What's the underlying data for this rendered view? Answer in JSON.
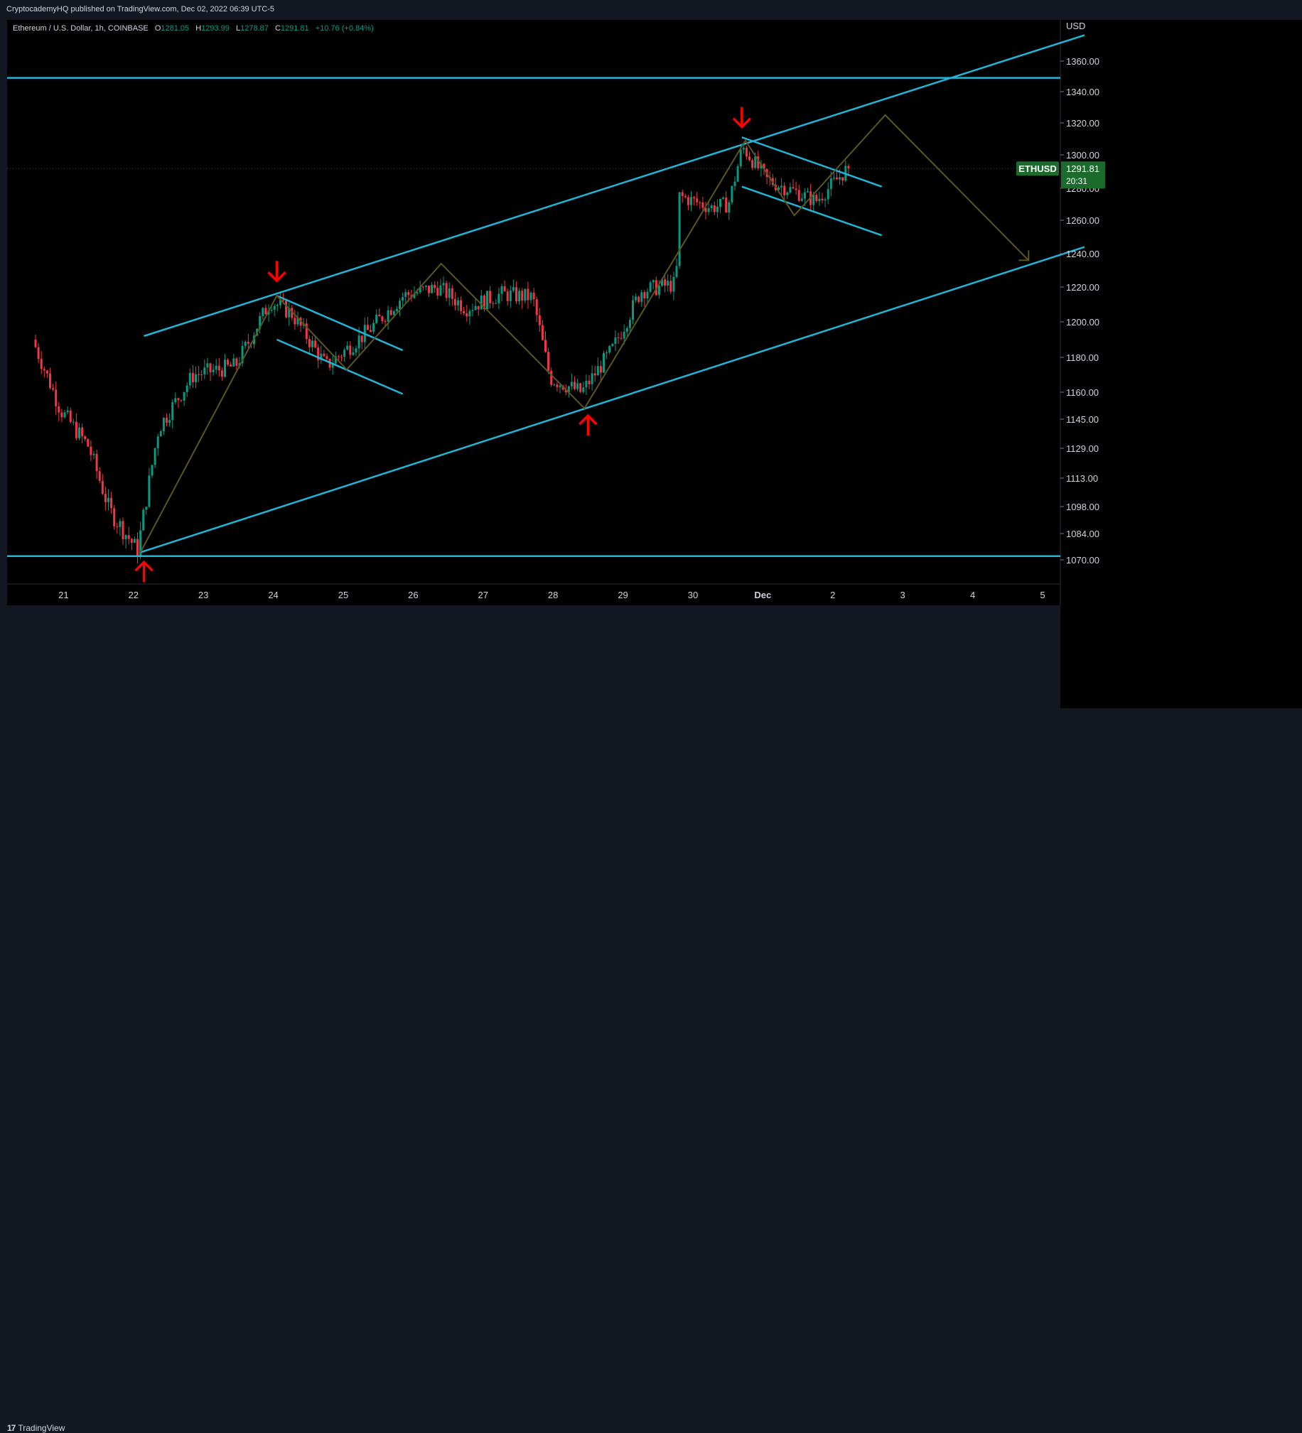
{
  "header": {
    "publisher_line": "CryptocademyHQ published on TradingView.com, Dec 02, 2022 06:39 UTC-5"
  },
  "legend": {
    "symbol": "Ethereum / U.S. Dollar, 1h, COINBASE",
    "o_label": "O",
    "o_value": "1281.05",
    "h_label": "H",
    "h_value": "1293.99",
    "l_label": "L",
    "l_value": "1278.87",
    "c_label": "C",
    "c_value": "1291.81",
    "change": "+10.76 (+0.84%)"
  },
  "footer": {
    "brand_mark": "17",
    "brand": "TradingView"
  },
  "colors": {
    "background": "#000000",
    "frame": "#131722",
    "up": "#089981",
    "down": "#f23645",
    "trendline": "#22b5d6",
    "path": "#5a5620",
    "arrow": "#ff0000",
    "price_tag": "#1b6b2d"
  },
  "chart_data": {
    "type": "candlestick",
    "symbol": "ETHUSD",
    "currency": "USD",
    "timeframe": "1h",
    "price_axis_ticks": [
      1360.0,
      1340.0,
      1320.0,
      1300.0,
      1280.0,
      1260.0,
      1240.0,
      1220.0,
      1200.0,
      1180.0,
      1160.0,
      1145.0,
      1129.0,
      1113.0,
      1098.0,
      1084.0,
      1070.0
    ],
    "time_axis_ticks": [
      "21",
      "22",
      "23",
      "24",
      "25",
      "26",
      "27",
      "28",
      "29",
      "30",
      "Dec",
      "2",
      "3",
      "4",
      "5"
    ],
    "last_price_label": "ETHUSD",
    "last_price": "1291.81",
    "countdown": "20:31",
    "key_points": [
      {
        "day": 20.6,
        "price": 1190
      },
      {
        "day": 21.0,
        "price": 1150
      },
      {
        "day": 21.4,
        "price": 1130
      },
      {
        "day": 21.7,
        "price": 1096
      },
      {
        "day": 22.1,
        "price": 1075
      },
      {
        "day": 22.4,
        "price": 1140
      },
      {
        "day": 22.9,
        "price": 1170
      },
      {
        "day": 23.5,
        "price": 1175
      },
      {
        "day": 24.0,
        "price": 1212
      },
      {
        "day": 24.3,
        "price": 1205
      },
      {
        "day": 24.8,
        "price": 1175
      },
      {
        "day": 25.4,
        "price": 1195
      },
      {
        "day": 25.9,
        "price": 1215
      },
      {
        "day": 26.4,
        "price": 1220
      },
      {
        "day": 26.8,
        "price": 1208
      },
      {
        "day": 27.3,
        "price": 1216
      },
      {
        "day": 27.75,
        "price": 1214
      },
      {
        "day": 28.0,
        "price": 1168
      },
      {
        "day": 28.45,
        "price": 1160
      },
      {
        "day": 28.9,
        "price": 1185
      },
      {
        "day": 29.3,
        "price": 1218
      },
      {
        "day": 29.8,
        "price": 1222
      },
      {
        "day": 29.85,
        "price": 1275
      },
      {
        "day": 30.3,
        "price": 1268
      },
      {
        "day": 30.55,
        "price": 1270
      },
      {
        "day": 30.75,
        "price": 1305
      },
      {
        "day": 31.1,
        "price": 1285
      },
      {
        "day": 31.5,
        "price": 1278
      },
      {
        "day": 31.8,
        "price": 1272
      },
      {
        "day": 32.25,
        "price": 1291.81
      }
    ],
    "horizontal_levels": [
      1349,
      1072
    ],
    "channel_upper": [
      {
        "day": 22.15,
        "price": 1192
      },
      {
        "day": 35.6,
        "price": 1377
      }
    ],
    "channel_lower": [
      {
        "day": 22.1,
        "price": 1074
      },
      {
        "day": 35.6,
        "price": 1244
      }
    ],
    "flag_1": [
      {
        "from": {
          "day": 24.05,
          "price": 1215
        },
        "to": {
          "day": 25.85,
          "price": 1184
        }
      },
      {
        "from": {
          "day": 24.05,
          "price": 1190
        },
        "to": {
          "day": 25.85,
          "price": 1159
        }
      }
    ],
    "flag_2": [
      {
        "from": {
          "day": 30.7,
          "price": 1311
        },
        "to": {
          "day": 32.7,
          "price": 1281
        }
      },
      {
        "from": {
          "day": 30.7,
          "price": 1281
        },
        "to": {
          "day": 32.7,
          "price": 1251
        }
      }
    ],
    "projection_path": [
      {
        "day": 22.1,
        "price": 1074
      },
      {
        "day": 24.05,
        "price": 1215
      },
      {
        "day": 25.05,
        "price": 1173
      },
      {
        "day": 26.4,
        "price": 1234
      },
      {
        "day": 28.45,
        "price": 1151
      },
      {
        "day": 30.75,
        "price": 1309
      },
      {
        "day": 31.45,
        "price": 1263
      },
      {
        "day": 32.75,
        "price": 1325
      },
      {
        "day": 34.8,
        "price": 1236
      }
    ],
    "signal_arrows": [
      {
        "type": "up",
        "day": 22.15,
        "price": 1065
      },
      {
        "type": "down",
        "day": 24.05,
        "price": 1228
      },
      {
        "type": "up",
        "day": 28.5,
        "price": 1143
      },
      {
        "type": "down",
        "day": 30.7,
        "price": 1322
      }
    ]
  }
}
